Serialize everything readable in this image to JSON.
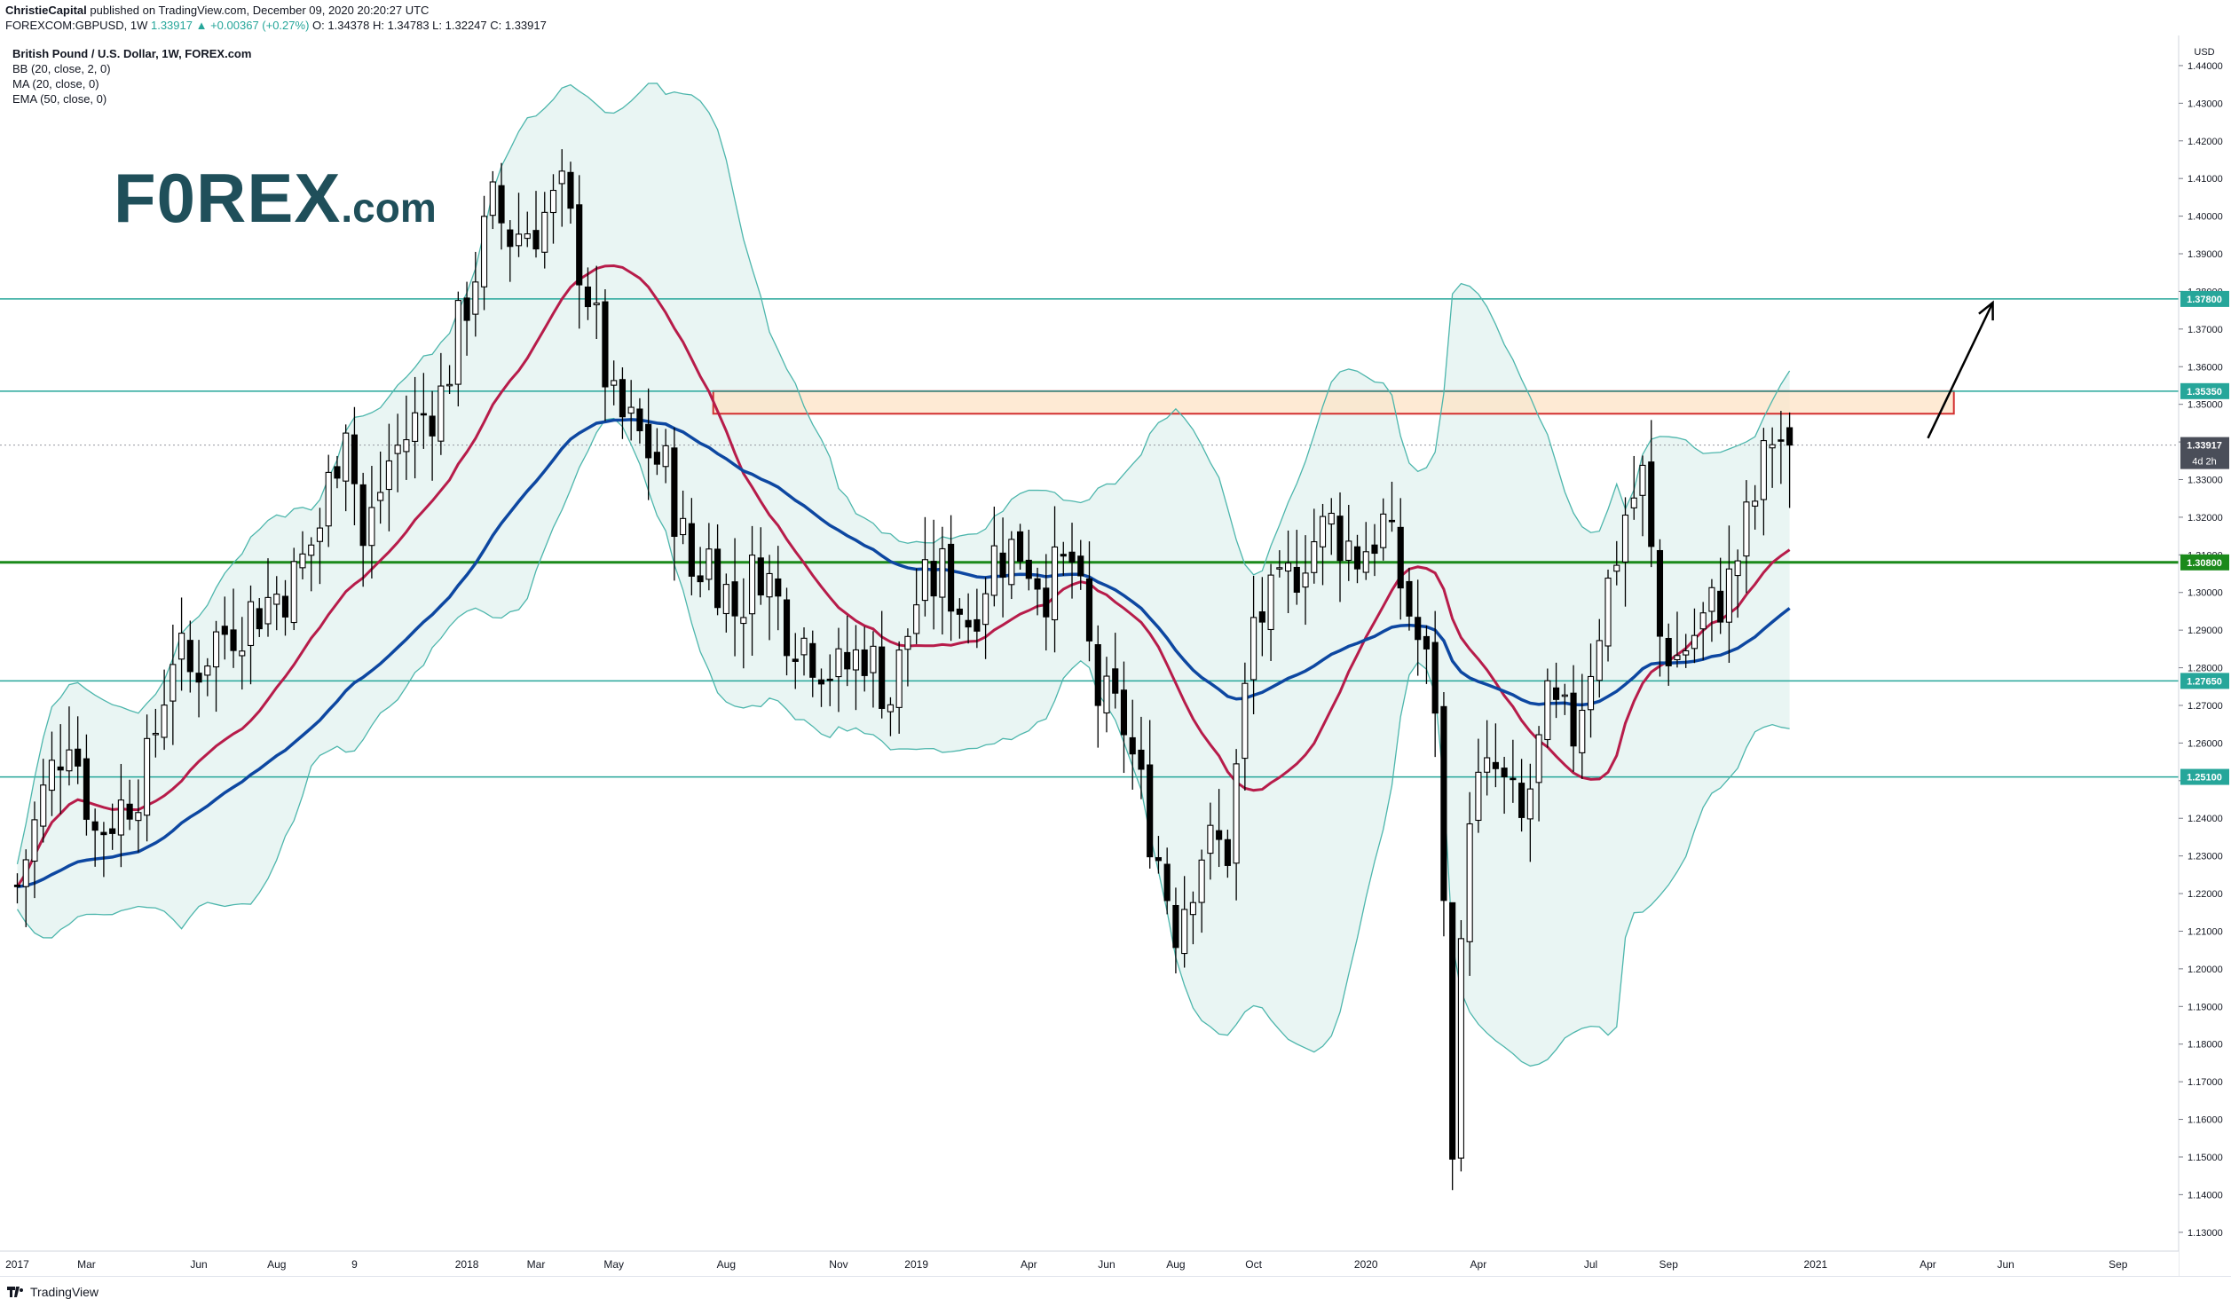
{
  "header": {
    "author": "ChristieCapital",
    "published_text": "published on TradingView.com, December 09, 2020 20:20:27 UTC",
    "symbol": "FOREXCOM:GBPUSD, 1W",
    "last": "1.33917",
    "change": "▲ +0.00367 (+0.27%)",
    "ohlc": "O: 1.34378  H: 1.34783  L: 1.32247  C: 1.33917"
  },
  "legend": {
    "title": "British Pound / U.S. Dollar, 1W, FOREX.com",
    "indicators": [
      "BB (20, close, 2, 0)",
      "MA (20, close, 0)",
      "EMA (50, close, 0)"
    ]
  },
  "logo": {
    "main": "F0REX",
    "suffix": ".com"
  },
  "footer": {
    "brand": "TradingView"
  },
  "colors": {
    "bb_band": "#4db6ac",
    "bb_fill": "#e9f5f3",
    "ma": "#b71c4a",
    "ema": "#0d47a1",
    "support_green": "#1b8a1b",
    "level": "#26a69a",
    "zone_fill": "#fde3c6",
    "zone_stroke": "#d32f2f"
  },
  "chart_data": {
    "type": "candlestick",
    "currency": "USD",
    "ylim": [
      1.125,
      1.448
    ],
    "y_ticks": [
      "1.44000",
      "1.43000",
      "1.42000",
      "1.41000",
      "1.40000",
      "1.39000",
      "1.38000",
      "1.37000",
      "1.36000",
      "1.35000",
      "1.34000",
      "1.33000",
      "1.32000",
      "1.31000",
      "1.30000",
      "1.29000",
      "1.28000",
      "1.27000",
      "1.26000",
      "1.25000",
      "1.24000",
      "1.23000",
      "1.22000",
      "1.21000",
      "1.20000",
      "1.19000",
      "1.18000",
      "1.17000",
      "1.16000",
      "1.15000",
      "1.14000",
      "1.13000"
    ],
    "x_labels": [
      {
        "label": "2017",
        "week": 0
      },
      {
        "label": "Mar",
        "week": 8
      },
      {
        "label": "Jun",
        "week": 21
      },
      {
        "label": "Aug",
        "week": 30
      },
      {
        "label": "9",
        "week": 39
      },
      {
        "label": "2018",
        "week": 52
      },
      {
        "label": "Mar",
        "week": 60
      },
      {
        "label": "May",
        "week": 69
      },
      {
        "label": "Aug",
        "week": 82
      },
      {
        "label": "Nov",
        "week": 95
      },
      {
        "label": "2019",
        "week": 104
      },
      {
        "label": "Apr",
        "week": 117
      },
      {
        "label": "Jun",
        "week": 126
      },
      {
        "label": "Aug",
        "week": 134
      },
      {
        "label": "Oct",
        "week": 143
      },
      {
        "label": "2020",
        "week": 156
      },
      {
        "label": "Apr",
        "week": 169
      },
      {
        "label": "Jul",
        "week": 182
      },
      {
        "label": "Sep",
        "week": 191
      },
      {
        "label": "2021",
        "week": 208
      },
      {
        "label": "Apr",
        "week": 221
      },
      {
        "label": "Jun",
        "week": 230
      },
      {
        "label": "Sep",
        "week": 243
      }
    ],
    "levels": [
      {
        "value": 1.378,
        "label": "1.37800",
        "style": "teal"
      },
      {
        "value": 1.3535,
        "label": "1.35350",
        "style": "teal"
      },
      {
        "value": 1.308,
        "label": "1.30800",
        "style": "green"
      },
      {
        "value": 1.2765,
        "label": "1.27650",
        "style": "teal"
      },
      {
        "value": 1.251,
        "label": "1.25100",
        "style": "teal"
      }
    ],
    "price_tag": {
      "value": 1.33917,
      "label": "1.33917",
      "countdown": "4d 2h"
    },
    "resistance_zone": {
      "week_from": 80.5,
      "week_to": 224,
      "low": 1.3475,
      "high": 1.3535
    },
    "arrow": {
      "from_week": 221,
      "from_price": 1.341,
      "to_week": 228.5,
      "to_price": 1.377
    },
    "close_anchors": [
      [
        0,
        1.222
      ],
      [
        3,
        1.246
      ],
      [
        6,
        1.265
      ],
      [
        9,
        1.236
      ],
      [
        12,
        1.243
      ],
      [
        15,
        1.253
      ],
      [
        18,
        1.285
      ],
      [
        20,
        1.278
      ],
      [
        23,
        1.288
      ],
      [
        26,
        1.293
      ],
      [
        29,
        1.298
      ],
      [
        32,
        1.303
      ],
      [
        35,
        1.318
      ],
      [
        38,
        1.348
      ],
      [
        40,
        1.312
      ],
      [
        43,
        1.335
      ],
      [
        46,
        1.345
      ],
      [
        49,
        1.352
      ],
      [
        52,
        1.378
      ],
      [
        55,
        1.402
      ],
      [
        57,
        1.395
      ],
      [
        60,
        1.398
      ],
      [
        63,
        1.405
      ],
      [
        66,
        1.38
      ],
      [
        69,
        1.348
      ],
      [
        72,
        1.341
      ],
      [
        75,
        1.332
      ],
      [
        78,
        1.305
      ],
      [
        80,
        1.31
      ],
      [
        83,
        1.295
      ],
      [
        86,
        1.308
      ],
      [
        89,
        1.292
      ],
      [
        92,
        1.285
      ],
      [
        95,
        1.278
      ],
      [
        98,
        1.285
      ],
      [
        101,
        1.272
      ],
      [
        104,
        1.298
      ],
      [
        107,
        1.305
      ],
      [
        110,
        1.293
      ],
      [
        113,
        1.31
      ],
      [
        116,
        1.312
      ],
      [
        119,
        1.302
      ],
      [
        122,
        1.308
      ],
      [
        125,
        1.272
      ],
      [
        128,
        1.265
      ],
      [
        131,
        1.238
      ],
      [
        134,
        1.212
      ],
      [
        137,
        1.232
      ],
      [
        140,
        1.232
      ],
      [
        143,
        1.292
      ],
      [
        146,
        1.298
      ],
      [
        149,
        1.312
      ],
      [
        152,
        1.318
      ],
      [
        155,
        1.31
      ],
      [
        158,
        1.318
      ],
      [
        161,
        1.295
      ],
      [
        164,
        1.272
      ],
      [
        166,
        1.158
      ],
      [
        168,
        1.245
      ],
      [
        171,
        1.252
      ],
      [
        174,
        1.238
      ],
      [
        177,
        1.268
      ],
      [
        180,
        1.263
      ],
      [
        183,
        1.292
      ],
      [
        186,
        1.321
      ],
      [
        188,
        1.33
      ],
      [
        190,
        1.288
      ],
      [
        192,
        1.283
      ],
      [
        195,
        1.292
      ],
      [
        198,
        1.302
      ],
      [
        201,
        1.325
      ],
      [
        203,
        1.342
      ],
      [
        205,
        1.3392
      ]
    ]
  }
}
